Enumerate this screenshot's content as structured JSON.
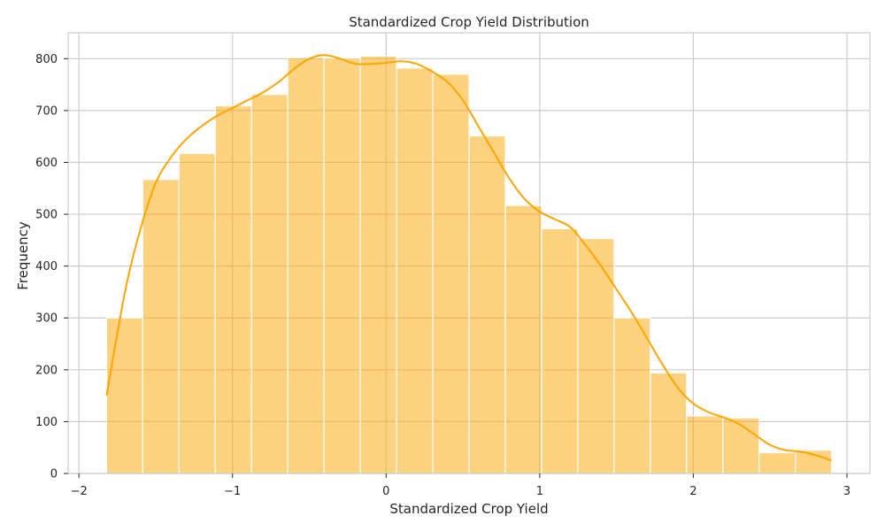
{
  "chart_data": {
    "type": "bar",
    "title": "Standardized Crop Yield Distribution",
    "xlabel": "Standardized Crop Yield",
    "ylabel": "Frequency",
    "xlim": [
      -2.07,
      3.15
    ],
    "ylim": [
      0,
      850
    ],
    "grid": true,
    "bar_color": "#ffa500",
    "kde_color": "#ffa500",
    "x_ticks": [
      -2,
      -1,
      0,
      1,
      2,
      3
    ],
    "x_tick_labels": [
      "−2",
      "−1",
      "0",
      "1",
      "2",
      "3"
    ],
    "y_ticks": [
      0,
      100,
      200,
      300,
      400,
      500,
      600,
      700,
      800
    ],
    "y_tick_labels": [
      "0",
      "100",
      "200",
      "300",
      "400",
      "500",
      "600",
      "700",
      "800"
    ],
    "bin_edges": [
      -1.82,
      -1.584,
      -1.348,
      -1.112,
      -0.876,
      -0.64,
      -0.404,
      -0.168,
      0.068,
      0.304,
      0.54,
      0.776,
      1.012,
      1.248,
      1.484,
      1.72,
      1.956,
      2.192,
      2.428,
      2.664,
      2.9
    ],
    "values": [
      300,
      567,
      617,
      709,
      731,
      802,
      801,
      805,
      782,
      770,
      651,
      517,
      472,
      453,
      300,
      194,
      111,
      107,
      40,
      45
    ],
    "kde": {
      "x": [
        -1.82,
        -1.7,
        -1.6,
        -1.5,
        -1.4,
        -1.3,
        -1.2,
        -1.1,
        -1.0,
        -0.9,
        -0.8,
        -0.7,
        -0.6,
        -0.5,
        -0.4,
        -0.3,
        -0.2,
        -0.1,
        0.0,
        0.1,
        0.2,
        0.3,
        0.4,
        0.5,
        0.6,
        0.7,
        0.8,
        0.9,
        1.0,
        1.1,
        1.2,
        1.3,
        1.4,
        1.5,
        1.6,
        1.7,
        1.8,
        1.9,
        2.0,
        2.1,
        2.2,
        2.3,
        2.4,
        2.5,
        2.6,
        2.7,
        2.8,
        2.9
      ],
      "y": [
        150,
        350,
        470,
        560,
        610,
        645,
        670,
        690,
        705,
        720,
        735,
        755,
        780,
        800,
        807,
        800,
        790,
        790,
        792,
        795,
        790,
        775,
        755,
        720,
        670,
        620,
        570,
        530,
        505,
        490,
        475,
        440,
        400,
        355,
        310,
        260,
        210,
        165,
        135,
        118,
        108,
        95,
        75,
        55,
        45,
        42,
        35,
        25
      ]
    }
  }
}
